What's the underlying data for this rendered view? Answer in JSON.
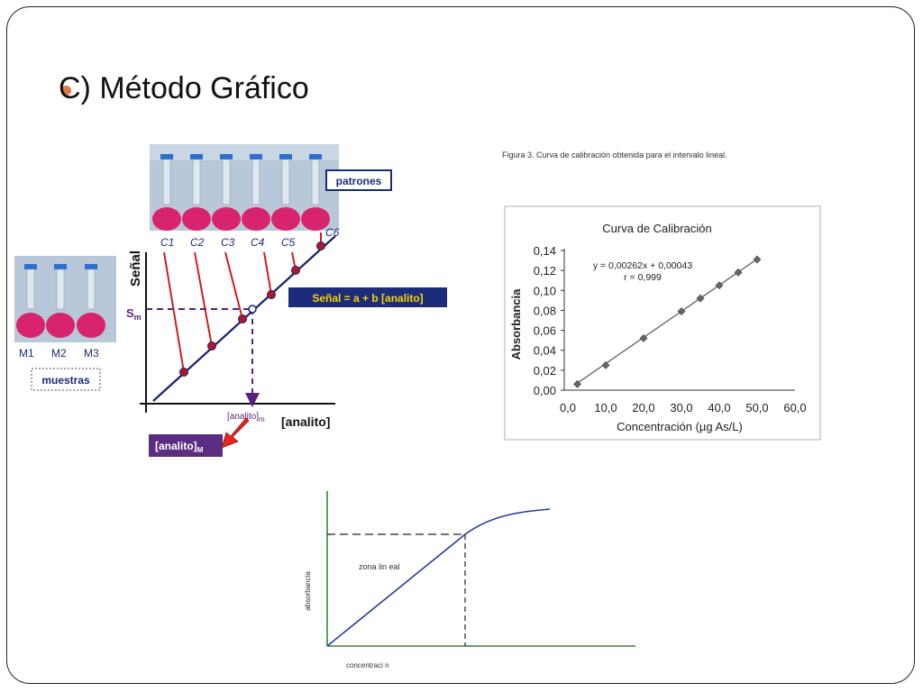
{
  "slide": {
    "title": "C) Método Gráfico",
    "bullet_color": "#e07a47"
  },
  "figure_left": {
    "patrones_label": "patrones",
    "muestras_label": "muestras",
    "standards": [
      "C1",
      "C2",
      "C3",
      "C4",
      "C5",
      "C6"
    ],
    "samples": [
      "M1",
      "M2",
      "M3"
    ],
    "y_axis_label": "Señal",
    "sm_label": "S",
    "sm_sub": "m",
    "x_axis_label": "[analito]",
    "xm_label": "[analito]",
    "xm_sub": "m",
    "equation_label": "Señal = a + b [analito]",
    "result_label": "[analito]",
    "result_sub": "M",
    "colors": {
      "line": "#1a1f6e",
      "drop": "#cc1f1f",
      "dashed": "#5a1f7a",
      "equation_bg": "#1c2b7a",
      "equation_text": "#f6d200",
      "result_bg": "#5a2d82",
      "arrow": "#e5261c",
      "flask_liquid": "#d8246c"
    }
  },
  "figure_right": {
    "caption": "Figura 3. Curva de calibración obtenida para el intervalo lineal.",
    "chart_data": {
      "type": "scatter",
      "title": "Curva de Calibración",
      "xlabel": "Concentración (µg As/L)",
      "ylabel": "Absorbancia",
      "xlim": [
        0,
        60
      ],
      "ylim": [
        0,
        0.14
      ],
      "x_ticks": [
        "0,0",
        "10,0",
        "20,0",
        "30,0",
        "40,0",
        "50,0",
        "60,0"
      ],
      "y_ticks": [
        "0,00",
        "0,02",
        "0,04",
        "0,06",
        "0,08",
        "0,10",
        "0,12",
        "0,14"
      ],
      "points": [
        {
          "x": 2.5,
          "y": 0.006
        },
        {
          "x": 10,
          "y": 0.025
        },
        {
          "x": 20,
          "y": 0.052
        },
        {
          "x": 30,
          "y": 0.079
        },
        {
          "x": 35,
          "y": 0.092
        },
        {
          "x": 40,
          "y": 0.105
        },
        {
          "x": 45,
          "y": 0.118
        },
        {
          "x": 50,
          "y": 0.131
        }
      ],
      "equation": "y = 0,00262x + 0,00043",
      "r_value": "r = 0,999",
      "fit": {
        "slope": 0.00262,
        "intercept": 0.00043
      },
      "grid": false
    }
  },
  "figure_bottom": {
    "zone_label": "zona lin eal",
    "y_axis_label": "absorbancia",
    "x_axis_label": "concentraci n",
    "colors": {
      "axis": "#2e8b2e",
      "curve": "#2a3a9a",
      "dashed": "#222222"
    }
  }
}
